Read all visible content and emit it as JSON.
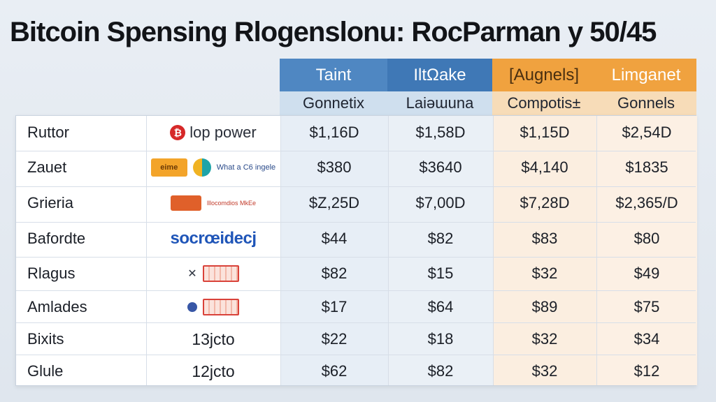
{
  "title": "Bitcoin Spensing Rlogenslonu: RocParman y 50/45",
  "colors": {
    "header_blue": "#4f87c2",
    "header_blue_dark": "#3f78b6",
    "header_orange": "#f0a23f",
    "sub_blue": "#cfdfee",
    "sub_orange": "#f7dcb8"
  },
  "chart_data": {
    "type": "table",
    "columns": [
      {
        "header": "Taint",
        "subheader": "Gonnetix",
        "group": "blue"
      },
      {
        "header": "IltΩake",
        "subheader": "Laiəɯuna",
        "group": "blue"
      },
      {
        "header": "[Augnels]",
        "subheader": "Compotis±",
        "group": "orange"
      },
      {
        "header": "Limganet",
        "subheader": "Gonnels",
        "group": "orange"
      }
    ],
    "rows": [
      {
        "name": "Ruttor",
        "brand": "lop power",
        "brand_icon": "bitcoin-icon",
        "values": [
          "$1,16D",
          "$1,58D",
          "$1,15D",
          "$2,54D"
        ]
      },
      {
        "name": "Zauet",
        "brand": "What a C6 ingele",
        "brand_icon": "amazon-logo",
        "values": [
          "$380",
          "$3640",
          "$4,140",
          "$1835"
        ]
      },
      {
        "name": "Grieria",
        "brand": "lllocomdios MkEe",
        "brand_icon": "orange-logo",
        "values": [
          "$Z,25D",
          "$7,00D",
          "$7,28D",
          "$2,365/D"
        ]
      },
      {
        "name": "Bafordte",
        "brand": "socrœidecj",
        "brand_icon": "text-logo",
        "values": [
          "$44",
          "$82",
          "$83",
          "$80"
        ]
      },
      {
        "name": "Rlagus",
        "brand": "",
        "brand_icon": "red-grid-logo",
        "values": [
          "$82",
          "$15",
          "$32",
          "$49"
        ]
      },
      {
        "name": "Amlades",
        "brand": "",
        "brand_icon": "red-grid-logo",
        "values": [
          "$17",
          "$64",
          "$89",
          "$75"
        ]
      },
      {
        "name": "Bixits",
        "brand": "13jcto",
        "brand_icon": "",
        "values": [
          "$22",
          "$18",
          "$32",
          "$34"
        ]
      },
      {
        "name": "Glule",
        "brand": "12jcto",
        "brand_icon": "",
        "values": [
          "$62",
          "$82",
          "$32",
          "$12"
        ]
      }
    ]
  }
}
